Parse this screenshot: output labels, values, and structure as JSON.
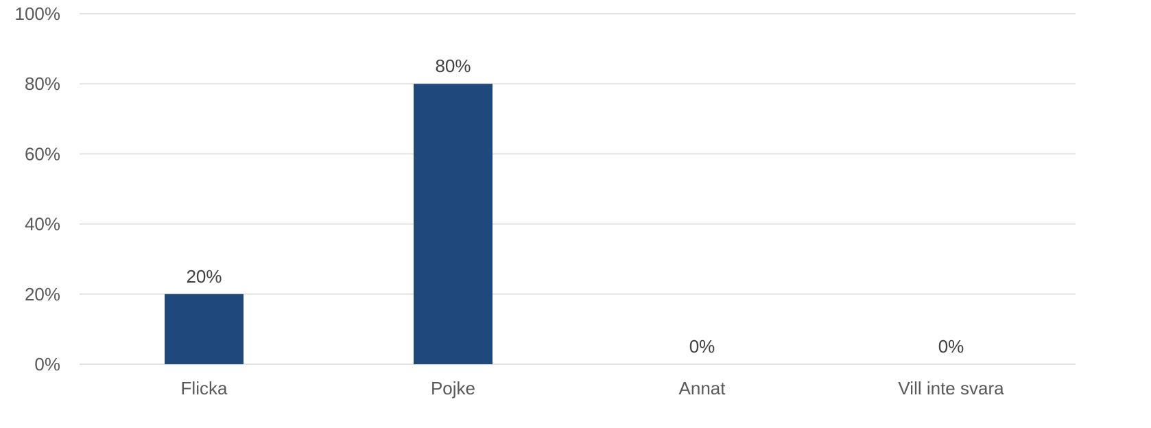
{
  "chart_data": {
    "type": "bar",
    "categories": [
      "Flicka",
      "Pojke",
      "Annat",
      "Vill inte svara"
    ],
    "values": [
      20,
      80,
      0,
      0
    ],
    "data_labels": [
      "20%",
      "80%",
      "0%",
      "0%"
    ],
    "ylim": [
      0,
      100
    ],
    "y_ticks": [
      0,
      20,
      40,
      60,
      80,
      100
    ],
    "y_tick_labels": [
      "0%",
      "20%",
      "40%",
      "60%",
      "80%",
      "100%"
    ],
    "grid": true,
    "bar_color": "#1f497d"
  }
}
